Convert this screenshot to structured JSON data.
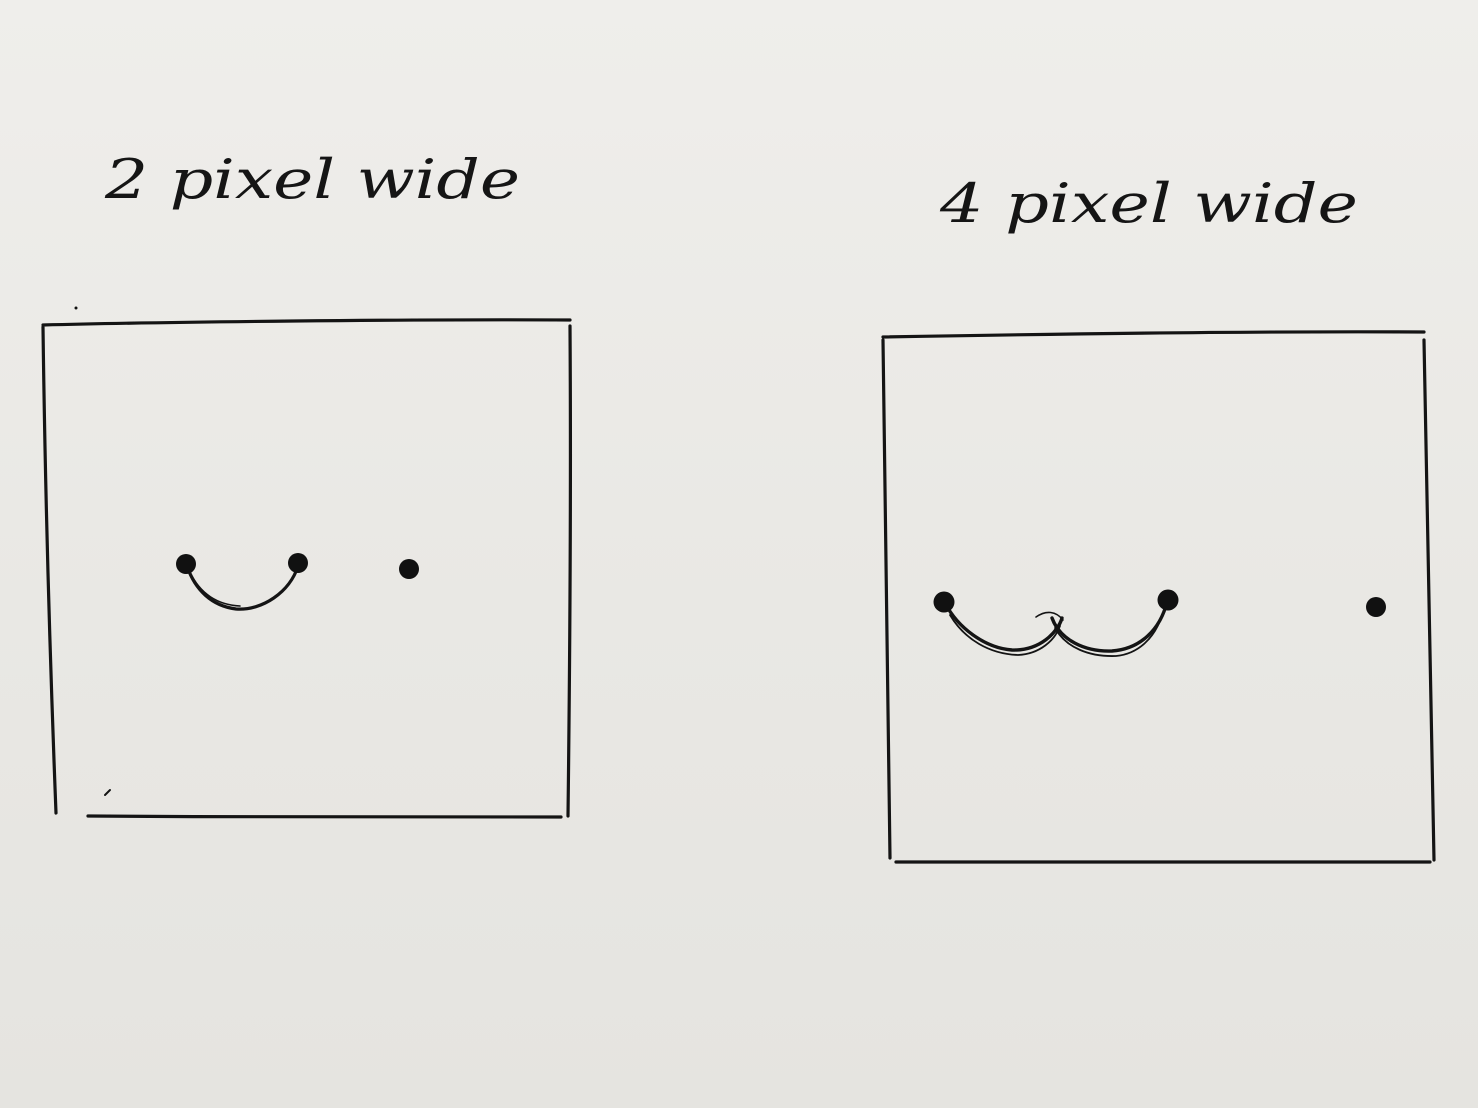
{
  "panels": [
    {
      "label": "2 pixel wide"
    },
    {
      "label": "4 pixel wide"
    }
  ]
}
